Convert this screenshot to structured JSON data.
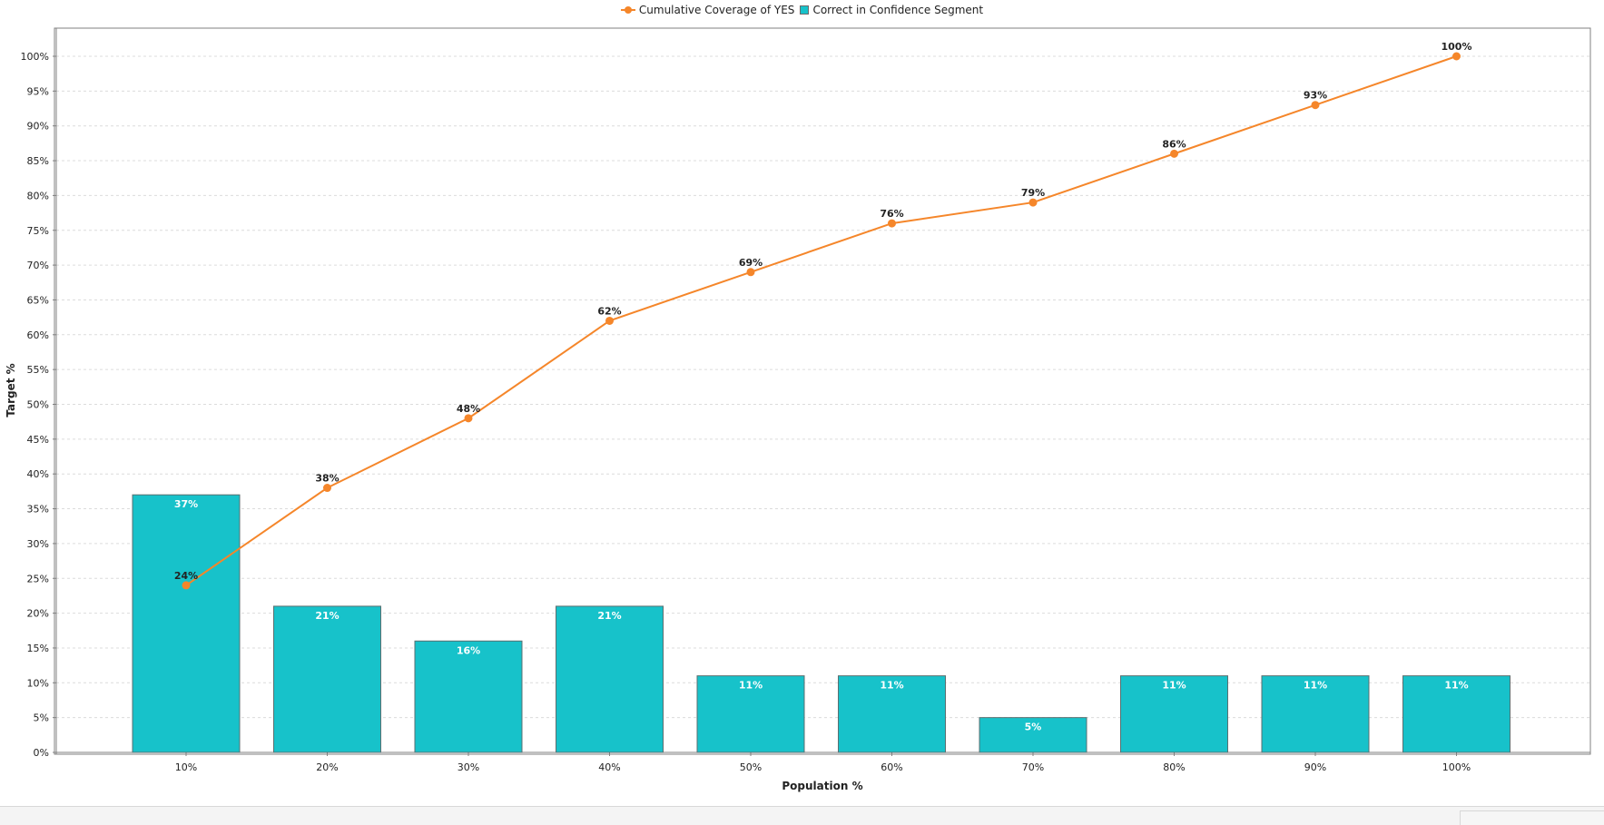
{
  "chart_data": {
    "type": "bar",
    "categories": [
      "10%",
      "20%",
      "30%",
      "40%",
      "50%",
      "60%",
      "70%",
      "80%",
      "90%",
      "100%"
    ],
    "series": [
      {
        "name": "Correct in Confidence Segment",
        "type": "bar",
        "values": [
          37,
          21,
          16,
          21,
          11,
          11,
          5,
          11,
          11,
          11
        ],
        "labels": [
          "37%",
          "21%",
          "16%",
          "21%",
          "11%",
          "11%",
          "5%",
          "11%",
          "11%",
          "11%"
        ]
      },
      {
        "name": "Cumulative Coverage of YES",
        "type": "line",
        "values": [
          24,
          38,
          48,
          62,
          69,
          76,
          79,
          86,
          93,
          100
        ],
        "labels": [
          "24%",
          "38%",
          "48%",
          "62%",
          "69%",
          "76%",
          "79%",
          "86%",
          "93%",
          "100%"
        ]
      }
    ],
    "xlabel": "Population %",
    "ylabel": "Target %",
    "ylim": [
      0,
      100
    ],
    "yticks": [
      "0%",
      "5%",
      "10%",
      "15%",
      "20%",
      "25%",
      "30%",
      "35%",
      "40%",
      "45%",
      "50%",
      "55%",
      "60%",
      "65%",
      "70%",
      "75%",
      "80%",
      "85%",
      "90%",
      "95%",
      "100%"
    ],
    "grid": true,
    "legend_position": "top-center",
    "colors": {
      "bar": "#17c2ca",
      "line": "#f5862a"
    }
  }
}
